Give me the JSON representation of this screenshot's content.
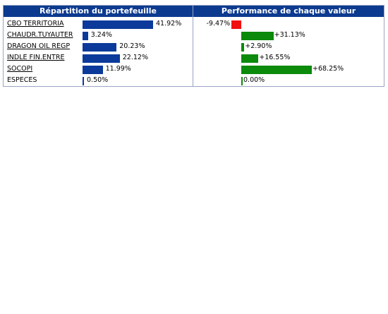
{
  "headers": {
    "allocation": "Répartition du portefeuille",
    "performance": "Performance de chaque valeur"
  },
  "rows": [
    {
      "name": "CBO TERRITORIA",
      "link": true,
      "alloc_label": "41.92%",
      "perf_label": "-9.47%"
    },
    {
      "name": "CHAUDR.TUYAUTER",
      "link": true,
      "alloc_label": "3.24%",
      "perf_label": "+31.13%"
    },
    {
      "name": "DRAGON OIL REGP",
      "link": true,
      "alloc_label": "20.23%",
      "perf_label": "+2.90%"
    },
    {
      "name": "INDLE FIN.ENTRE",
      "link": true,
      "alloc_label": "22.12%",
      "perf_label": "+16.55%"
    },
    {
      "name": "SOCOPI",
      "link": true,
      "alloc_label": "11.99%",
      "perf_label": "+68.25%"
    },
    {
      "name": "ESPECES",
      "link": false,
      "alloc_label": "0.50%",
      "perf_label": "0.00%"
    }
  ],
  "chart_data": [
    {
      "type": "bar",
      "title": "Répartition du portefeuille",
      "categories": [
        "CBO TERRITORIA",
        "CHAUDR.TUYAUTER",
        "DRAGON OIL REGP",
        "INDLE FIN.ENTRE",
        "SOCOPI",
        "ESPECES"
      ],
      "values": [
        41.92,
        3.24,
        20.23,
        22.12,
        11.99,
        0.5
      ],
      "unit": "%",
      "color": "#0b3a9a"
    },
    {
      "type": "bar",
      "title": "Performance de chaque valeur",
      "categories": [
        "CBO TERRITORIA",
        "CHAUDR.TUYAUTER",
        "DRAGON OIL REGP",
        "INDLE FIN.ENTRE",
        "SOCOPI",
        "ESPECES"
      ],
      "values": [
        -9.47,
        31.13,
        2.9,
        16.55,
        68.25,
        0.0
      ],
      "unit": "%",
      "positive_color": "#0b8a0b",
      "negative_color": "#f01010"
    }
  ]
}
